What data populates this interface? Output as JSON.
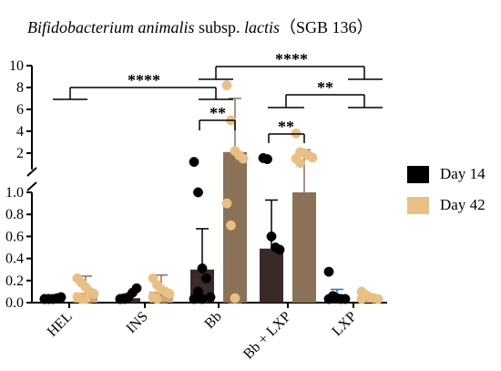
{
  "chart_data": {
    "type": "bar",
    "title_italic": "Bifidobacterium animalis",
    "title_mid": " subsp. ",
    "title_italic2": "lactis",
    "title_rest": "（SGB 136）",
    "xlabel": "",
    "ylabel": "",
    "categories": [
      "HEL",
      "INS",
      "Bb",
      "Bb + LXP",
      "LXP"
    ],
    "y_axis_lower": {
      "range": [
        0,
        1.0
      ],
      "ticks": [
        "0.0",
        "0.2",
        "0.4",
        "0.6",
        "0.8",
        "1.0"
      ]
    },
    "y_axis_upper": {
      "range": [
        1.0,
        10
      ],
      "ticks": [
        "2",
        "4",
        "6",
        "8",
        "10"
      ]
    },
    "series": [
      {
        "name": "Day 14",
        "color": "#000000",
        "values": [
          0.03,
          0.04,
          0.3,
          0.49,
          0.05
        ],
        "error_upper": [
          0.05,
          0.07,
          0.67,
          0.93,
          0.12
        ],
        "points": [
          [
            0.01,
            0.02,
            0.03,
            0.04,
            0.05,
            0.01,
            0.02
          ],
          [
            0.01,
            0.03,
            0.05,
            0.09,
            0.13,
            0.02,
            0.04
          ],
          [
            1.2,
            1.0,
            0.31,
            0.22,
            0.05,
            0.03,
            0.1,
            0.02
          ],
          [
            1.55,
            1.45,
            0.6,
            0.5,
            0.48
          ],
          [
            0.28,
            0.06,
            0.04,
            0.02,
            0.01,
            0.03
          ]
        ]
      },
      {
        "name": "Day 42",
        "color": "#e9c083",
        "values": [
          0.09,
          0.1,
          2.1,
          1.0,
          0.05
        ],
        "error_upper": [
          0.24,
          0.25,
          7.0,
          2.3,
          0.07
        ],
        "error_lower": [
          0.0,
          0.0,
          0.0,
          0.4,
          0.02
        ],
        "points": [
          [
            0.22,
            0.18,
            0.14,
            0.1,
            0.08,
            0.05,
            0.03,
            0.02
          ],
          [
            0.22,
            0.16,
            0.12,
            0.1,
            0.08,
            0.05,
            0.02
          ],
          [
            8.2,
            5.0,
            2.2,
            1.8,
            1.5,
            0.9,
            0.7,
            0.04
          ],
          [
            3.8,
            2.1,
            2.0,
            1.8,
            1.6,
            1.5,
            1.1
          ],
          [
            0.1,
            0.07,
            0.05,
            0.04,
            0.03,
            0.02
          ]
        ]
      }
    ],
    "significance": [
      {
        "label": "****"
      },
      {
        "label": "**"
      },
      {
        "label": "****"
      },
      {
        "label": "**"
      },
      {
        "label": "**"
      }
    ],
    "legend_position": "right"
  }
}
